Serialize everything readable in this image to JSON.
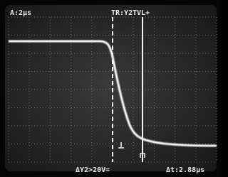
{
  "readouts": {
    "timebase": "A:2µs",
    "trigger": "TR:Y2TVL+",
    "voltage": "ΔY2>20V=",
    "delta_time": "Δt:2.88µs"
  }
}
